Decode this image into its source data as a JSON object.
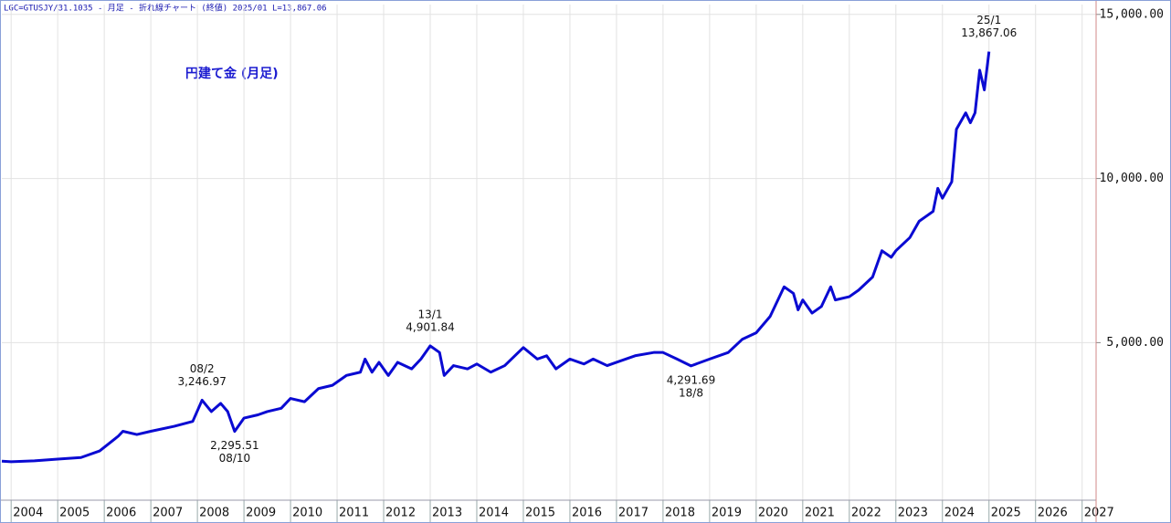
{
  "chart_data": {
    "type": "line",
    "header": "LGC=GTUSJY/31.1035 - 月足 - 折れ線チャート (終値)  2025/01 L=13,867.06",
    "title": "円建て金 (月足)",
    "x": [
      2003.8,
      2004.0,
      2004.5,
      2005.0,
      2005.5,
      2005.9,
      2006.3,
      2006.4,
      2006.7,
      2007.0,
      2007.5,
      2007.9,
      2008.1,
      2008.3,
      2008.5,
      2008.65,
      2008.8,
      2009.0,
      2009.3,
      2009.5,
      2009.8,
      2010.0,
      2010.3,
      2010.6,
      2010.9,
      2011.2,
      2011.5,
      2011.6,
      2011.75,
      2011.9,
      2012.1,
      2012.3,
      2012.6,
      2012.8,
      2013.0,
      2013.2,
      2013.3,
      2013.5,
      2013.8,
      2014.0,
      2014.3,
      2014.6,
      2015.0,
      2015.3,
      2015.5,
      2015.7,
      2016.0,
      2016.3,
      2016.5,
      2016.8,
      2017.0,
      2017.4,
      2017.8,
      2018.0,
      2018.3,
      2018.6,
      2019.0,
      2019.4,
      2019.7,
      2020.0,
      2020.3,
      2020.6,
      2020.8,
      2020.9,
      2021.0,
      2021.2,
      2021.4,
      2021.6,
      2021.7,
      2022.0,
      2022.2,
      2022.5,
      2022.7,
      2022.9,
      2023.0,
      2023.3,
      2023.5,
      2023.8,
      2023.9,
      2024.0,
      2024.2,
      2024.3,
      2024.5,
      2024.6,
      2024.7,
      2024.8,
      2024.9,
      2025.0
    ],
    "series": [
      {
        "name": "円建て金",
        "color": "#0a0ad2",
        "values": [
          1389,
          1370,
          1400,
          1450,
          1500,
          1700,
          2150,
          2300,
          2200,
          2300,
          2450,
          2600,
          3246.97,
          2900,
          3150,
          2900,
          2295.51,
          2700,
          2800,
          2900,
          3000,
          3300,
          3200,
          3600,
          3700,
          4000,
          4100,
          4500,
          4100,
          4400,
          4000,
          4400,
          4200,
          4500,
          4901.84,
          4700,
          4000,
          4300,
          4200,
          4350,
          4100,
          4300,
          4850,
          4500,
          4600,
          4200,
          4500,
          4350,
          4500,
          4300,
          4400,
          4600,
          4700,
          4700,
          4500,
          4291.69,
          4500,
          4700,
          5100,
          5300,
          5800,
          6700,
          6500,
          6000,
          6300,
          5900,
          6100,
          6700,
          6300,
          6400,
          6600,
          7000,
          7800,
          7600,
          7800,
          8200,
          8700,
          9000,
          9700,
          9400,
          9900,
          11500,
          12000,
          11700,
          12000,
          13300,
          12700,
          13867.06
        ]
      }
    ],
    "annotations": [
      {
        "date": "08/2",
        "x": 2008.1,
        "value": 3246.97,
        "value_label": "3,246.97",
        "position": "above"
      },
      {
        "date": "08/10",
        "x": 2008.8,
        "value": 2295.51,
        "value_label": "2,295.51",
        "position": "below"
      },
      {
        "date": "13/1",
        "x": 2013.0,
        "value": 4901.84,
        "value_label": "4,901.84",
        "position": "above"
      },
      {
        "date": "18/8",
        "x": 2018.6,
        "value": 4291.69,
        "value_label": "4,291.69",
        "position": "below"
      },
      {
        "date": "25/1",
        "x": 2025.0,
        "value": 13867.06,
        "value_label": "13,867.06",
        "position": "above"
      }
    ],
    "xlim": [
      2003.8,
      2027.3
    ],
    "xticks": [
      2004,
      2005,
      2006,
      2007,
      2008,
      2009,
      2010,
      2011,
      2012,
      2013,
      2014,
      2015,
      2016,
      2017,
      2018,
      2019,
      2020,
      2021,
      2022,
      2023,
      2024,
      2025,
      2026,
      2027
    ],
    "ylim": [
      200,
      15300
    ],
    "yticks": [
      {
        "value": 5000,
        "label": "5,000.00"
      },
      {
        "value": 10000,
        "label": "10,000.00"
      },
      {
        "value": 15000,
        "label": "15,000.00"
      }
    ],
    "grid": true
  }
}
